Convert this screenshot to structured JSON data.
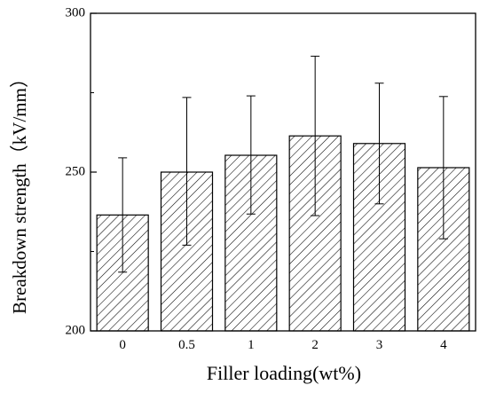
{
  "chart_data": {
    "type": "bar",
    "categories": [
      "0",
      "0.5",
      "1",
      "2",
      "3",
      "4"
    ],
    "values": [
      236.5,
      250.0,
      255.3,
      261.4,
      259.0,
      251.4
    ],
    "errors_upper": [
      254.5,
      273.5,
      274.0,
      286.5,
      278.0,
      273.8
    ],
    "errors_lower": [
      218.5,
      227.0,
      236.8,
      236.3,
      240.0,
      229.0
    ],
    "xlabel": "Filler loading(wt%)",
    "ylabel": "Breakdown strength（kV/mm）",
    "ylim": [
      200,
      300
    ],
    "yticks": [
      "200",
      "250",
      "300"
    ],
    "bar_pattern": "diagonal-hatch",
    "grid": false
  }
}
